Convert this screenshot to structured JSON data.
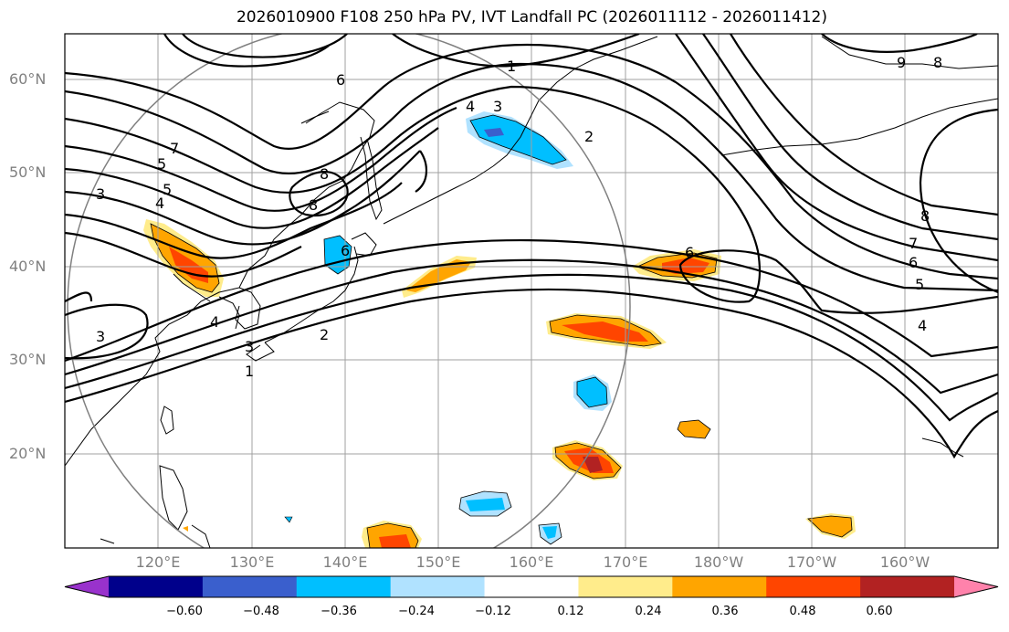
{
  "title": "2026010900 F108 250 hPa PV, IVT Landfall PC (2026011112 - 2026011412)",
  "lat_labels": [
    "60°N",
    "50°N",
    "40°N",
    "30°N",
    "20°N"
  ],
  "lon_labels": [
    "120°E",
    "130°E",
    "140°E",
    "150°E",
    "160°E",
    "170°E",
    "180°W",
    "170°W",
    "160°W"
  ],
  "contour_labels": [
    "1",
    "2",
    "3",
    "4",
    "5",
    "6",
    "7",
    "8",
    "9",
    "3",
    "4",
    "5",
    "6",
    "7",
    "8",
    "1",
    "2",
    "3",
    "4",
    "6",
    "8",
    "3",
    "4",
    "5",
    "6",
    "8"
  ],
  "colorbar": {
    "ticks": [
      "−0.60",
      "−0.48",
      "−0.36",
      "−0.24",
      "−0.12",
      "0.12",
      "0.24",
      "0.36",
      "0.48",
      "0.60"
    ],
    "colors": [
      "#9932cc",
      "#00008b",
      "#3a5fcd",
      "#00bfff",
      "#b0e2ff",
      "#ffffff",
      "#ffec8b",
      "#ffa500",
      "#ff4500",
      "#b22222",
      "#ff82ab"
    ]
  }
}
